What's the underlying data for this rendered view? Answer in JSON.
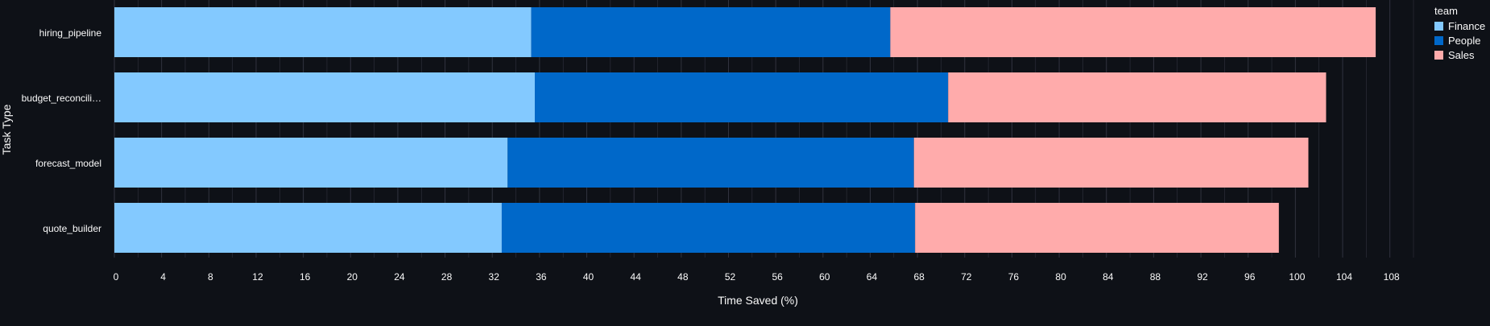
{
  "chart_data": {
    "type": "bar",
    "orientation": "horizontal",
    "stacked": true,
    "categories": [
      "hiring_pipeline",
      "budget_reconcili…",
      "forecast_model",
      "quote_builder"
    ],
    "series": [
      {
        "name": "Finance",
        "color": "#83c9ff",
        "values": [
          35.3,
          35.6,
          33.3,
          32.8
        ]
      },
      {
        "name": "People",
        "color": "#0068c9",
        "values": [
          30.4,
          35.0,
          34.4,
          35.0
        ]
      },
      {
        "name": "Sales",
        "color": "#ffabab",
        "values": [
          41.1,
          32.0,
          33.4,
          30.8
        ]
      }
    ],
    "xlabel": "Time Saved (%)",
    "ylabel": "Task Type",
    "xlim": [
      0,
      110
    ],
    "x_ticks": [
      0,
      4,
      8,
      12,
      16,
      20,
      24,
      28,
      32,
      36,
      40,
      44,
      48,
      52,
      56,
      60,
      64,
      68,
      72,
      76,
      80,
      84,
      88,
      92,
      96,
      100,
      104,
      108
    ],
    "grid": true,
    "legend": {
      "title": "team",
      "position": "top-right"
    }
  },
  "colors": {
    "background": "#0e1117",
    "grid": "#31333f",
    "text": "#fafafa"
  }
}
